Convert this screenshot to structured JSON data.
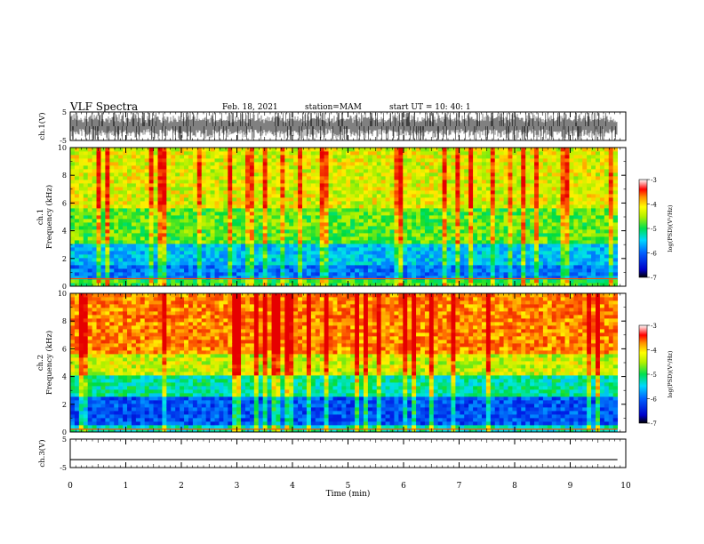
{
  "header": {
    "title": "VLF Spectra",
    "date": "Feb. 18, 2021",
    "station": "station=MAM",
    "start": "start UT =   10: 40: 1"
  },
  "chart_data": [
    {
      "type": "line",
      "panel": "ch1-waveform",
      "ylabel": "ch.1(V)",
      "ylim": [
        -5,
        5
      ],
      "yticks": [
        "5",
        "-5"
      ],
      "description": "dense impulsive waveform spanning approximately -5 to 5 V"
    },
    {
      "type": "heatmap",
      "panel": "ch1-spectrogram",
      "ylabel": "ch.1\nFrequency (kHz)",
      "ylim": [
        0,
        10
      ],
      "yticks": [
        "0",
        "2",
        "4",
        "6",
        "8",
        "10"
      ],
      "colorbar": {
        "label": "log(PSD)(V²/Hz)",
        "range": [
          -7,
          -3
        ],
        "ticks": [
          "-3",
          "-4",
          "-5",
          "-6",
          "-7"
        ]
      }
    },
    {
      "type": "heatmap",
      "panel": "ch2-spectrogram",
      "ylabel": "ch.2\nFrequency (kHz)",
      "ylim": [
        0,
        10
      ],
      "yticks": [
        "0",
        "2",
        "4",
        "6",
        "8",
        "10"
      ],
      "colorbar": {
        "label": "log(PSD)(V²/Hz)",
        "range": [
          -7,
          -3
        ],
        "ticks": [
          "-3",
          "-4",
          "-5",
          "-6",
          "-7"
        ]
      }
    },
    {
      "type": "line",
      "panel": "ch3-waveform",
      "ylabel": "ch.3(V)",
      "ylim": [
        -5,
        5
      ],
      "yticks": [
        "5",
        "-5"
      ],
      "values_approx": -2.2
    }
  ],
  "x_axis": {
    "label": "Time (min)",
    "range": [
      0,
      10
    ],
    "ticks": [
      "0",
      "1",
      "2",
      "3",
      "4",
      "5",
      "6",
      "7",
      "8",
      "9",
      "10"
    ],
    "data_end": 9.85
  },
  "colors": {
    "axis": "#000000",
    "background": "#ffffff"
  }
}
